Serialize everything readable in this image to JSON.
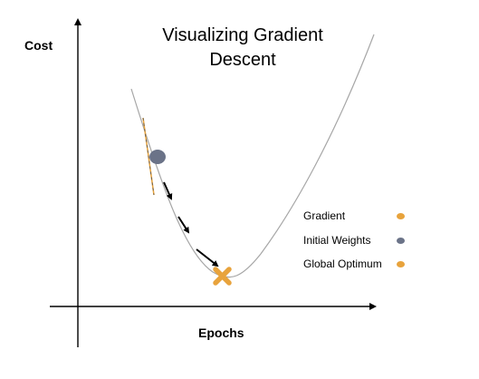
{
  "title_lines": [
    "Visualizing Gradient",
    "Descent"
  ],
  "axes": {
    "y_label": "Cost",
    "x_label": "Epochs"
  },
  "legend": [
    {
      "label": "Gradient",
      "color": "#e8a33c",
      "icon": "orange-dot"
    },
    {
      "label": "Initial Weights",
      "color": "#6b7388",
      "icon": "gray-blue-dot"
    },
    {
      "label": "Global Optimum",
      "color": "#e8a33c",
      "icon": "orange-dot"
    }
  ],
  "colors": {
    "curve": "#a6a6a6",
    "initial_weights": "#6b7388",
    "global_optimum": "#e8a33c",
    "gradient_line": "#e8a33c",
    "axis": "#000000",
    "arrows": "#000000"
  },
  "step_arrow_count": 3
}
